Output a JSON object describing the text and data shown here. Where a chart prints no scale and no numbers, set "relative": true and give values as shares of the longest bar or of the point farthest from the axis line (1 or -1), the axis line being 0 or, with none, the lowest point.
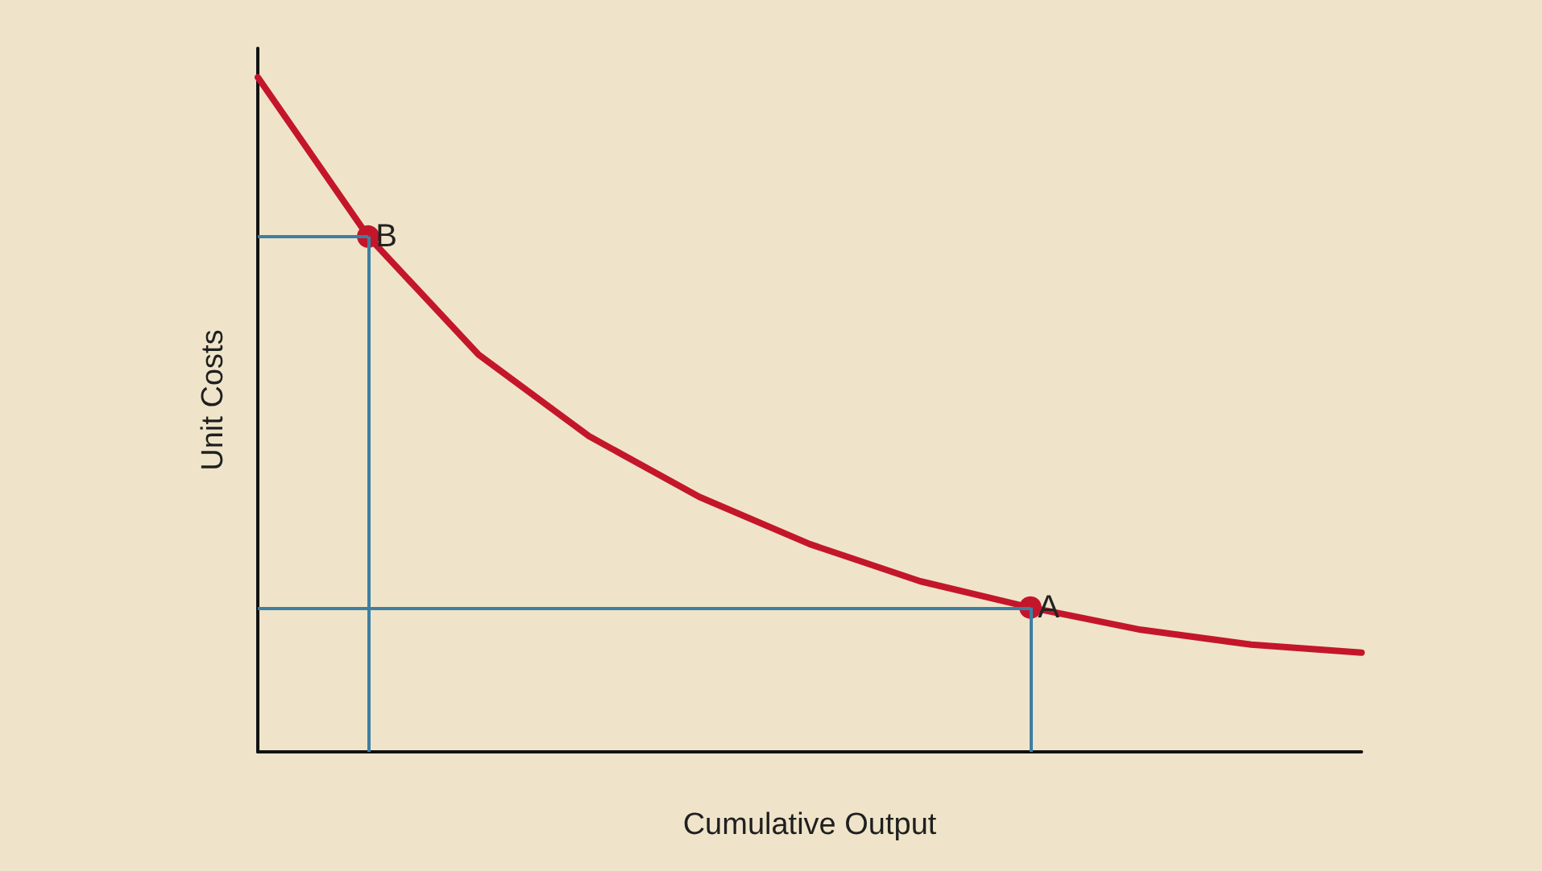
{
  "chart_data": {
    "type": "line",
    "relative": true,
    "xlabel": "Cumulative Output",
    "ylabel": "Unit Costs",
    "categories": [
      null,
      null,
      null,
      null,
      null,
      null,
      null,
      null,
      null,
      null,
      null
    ],
    "series": [
      {
        "color": "#c4162a",
        "values": [
          1,
          0.764,
          0.589,
          0.468,
          0.378,
          0.308,
          0.253,
          0.214,
          0.181,
          0.159,
          0.147
        ]
      }
    ],
    "annotations": [
      {
        "text": "B",
        "y": 0.764
      },
      {
        "text": "A",
        "y": 0.214
      }
    ],
    "marker": "none",
    "line_style": "solid"
  }
}
